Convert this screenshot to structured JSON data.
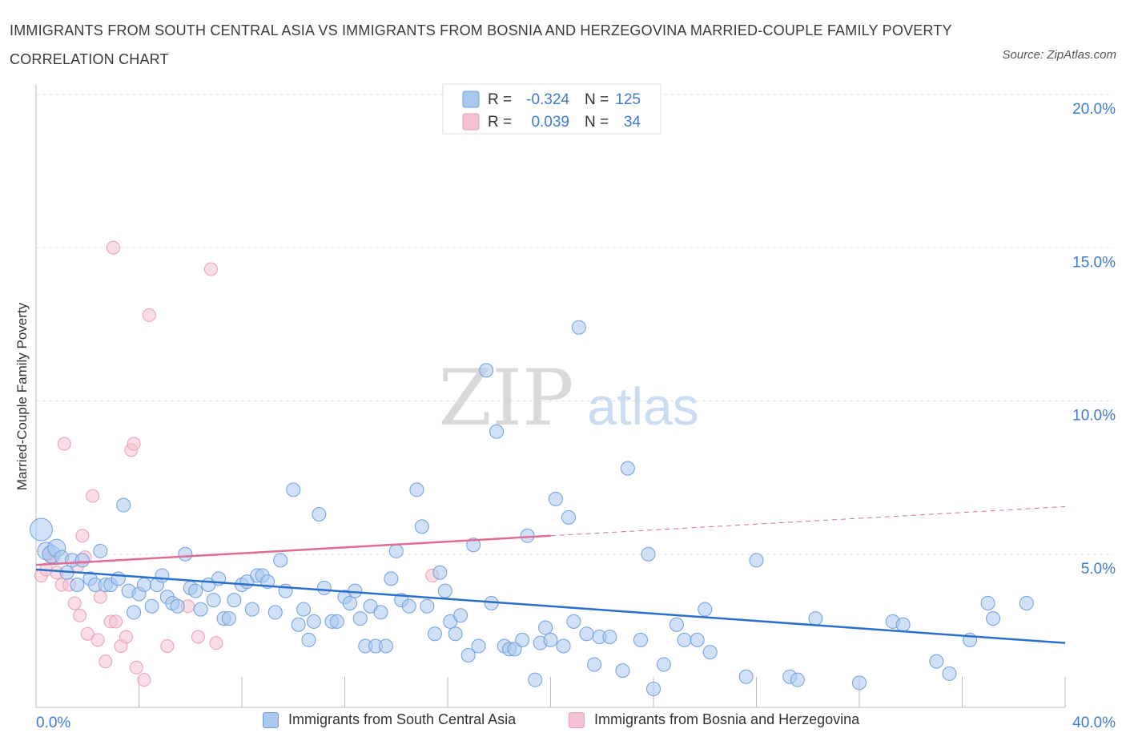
{
  "title": "IMMIGRANTS FROM SOUTH CENTRAL ASIA VS IMMIGRANTS FROM BOSNIA AND HERZEGOVINA MARRIED-COUPLE FAMILY POVERTY CORRELATION CHART",
  "source": "Source: ZipAtlas.com",
  "watermark": {
    "zip": "ZIP",
    "atlas": "atlas"
  },
  "colors": {
    "blue": "#a9c8f0",
    "blue_stroke": "#6fa0dc",
    "blue_line": "#2a6fcc",
    "pink": "#f6c1d0",
    "pink_stroke": "#e8a0b4",
    "pink_line": "#e06b95",
    "tick_text": "#3d7cd6"
  },
  "legend": {
    "rows": [
      {
        "r_label": "R =",
        "r_value": "-0.324",
        "n_label": "N =",
        "n_value": "125"
      },
      {
        "r_label": "R =",
        "r_value": "0.039",
        "n_label": "N =",
        "n_value": "34"
      }
    ]
  },
  "bottom_legend": [
    "Immigrants from South Central Asia",
    "Immigrants from Bosnia and Herzegovina"
  ],
  "chart_data": {
    "type": "scatter",
    "title": "IMMIGRANTS FROM SOUTH CENTRAL ASIA VS IMMIGRANTS FROM BOSNIA AND HERZEGOVINA MARRIED-COUPLE FAMILY POVERTY CORRELATION CHART",
    "xlabel": "",
    "ylabel": "Married-Couple Family Poverty",
    "xlim": [
      0,
      40
    ],
    "ylim": [
      0,
      20
    ],
    "x_tick_labels": [
      "0.0%",
      "40.0%"
    ],
    "y_tick_labels": [
      "5.0%",
      "10.0%",
      "15.0%",
      "20.0%"
    ],
    "y_ticks": [
      5,
      10,
      15,
      20
    ],
    "grid": true,
    "legend_position": "top-center",
    "series": [
      {
        "name": "Immigrants from South Central Asia",
        "r": -0.324,
        "n": 125,
        "trend": {
          "x0": 0,
          "y0": 4.5,
          "x1": 40,
          "y1": 2.1
        },
        "points": [
          [
            0.2,
            5.8
          ],
          [
            0.4,
            5.1
          ],
          [
            0.6,
            5.0
          ],
          [
            0.8,
            5.2
          ],
          [
            1.0,
            4.9
          ],
          [
            1.2,
            4.4
          ],
          [
            1.4,
            4.8
          ],
          [
            1.6,
            4.0
          ],
          [
            1.8,
            4.8
          ],
          [
            2.1,
            4.2
          ],
          [
            2.3,
            4.0
          ],
          [
            2.5,
            5.1
          ],
          [
            2.7,
            4.0
          ],
          [
            2.9,
            4.0
          ],
          [
            3.2,
            4.2
          ],
          [
            3.4,
            6.6
          ],
          [
            3.6,
            3.8
          ],
          [
            3.8,
            3.1
          ],
          [
            4.0,
            3.7
          ],
          [
            4.2,
            4.0
          ],
          [
            4.5,
            3.3
          ],
          [
            4.7,
            4.0
          ],
          [
            4.9,
            4.3
          ],
          [
            5.1,
            3.6
          ],
          [
            5.3,
            3.4
          ],
          [
            5.5,
            3.3
          ],
          [
            5.8,
            5.0
          ],
          [
            6.0,
            3.9
          ],
          [
            6.2,
            3.8
          ],
          [
            6.4,
            3.2
          ],
          [
            6.7,
            4.0
          ],
          [
            6.9,
            3.5
          ],
          [
            7.1,
            4.2
          ],
          [
            7.3,
            2.9
          ],
          [
            7.5,
            2.9
          ],
          [
            7.7,
            3.5
          ],
          [
            8.0,
            4.0
          ],
          [
            8.2,
            4.1
          ],
          [
            8.4,
            3.2
          ],
          [
            8.6,
            4.3
          ],
          [
            8.8,
            4.3
          ],
          [
            9.0,
            4.1
          ],
          [
            9.3,
            3.1
          ],
          [
            9.5,
            4.8
          ],
          [
            9.7,
            3.8
          ],
          [
            10.0,
            7.1
          ],
          [
            10.2,
            2.7
          ],
          [
            10.4,
            3.2
          ],
          [
            10.6,
            2.2
          ],
          [
            10.8,
            2.8
          ],
          [
            11.0,
            6.3
          ],
          [
            11.2,
            3.9
          ],
          [
            11.5,
            2.8
          ],
          [
            11.7,
            2.8
          ],
          [
            12.0,
            3.6
          ],
          [
            12.2,
            3.4
          ],
          [
            12.4,
            3.8
          ],
          [
            12.6,
            2.9
          ],
          [
            12.8,
            2.0
          ],
          [
            13.0,
            3.3
          ],
          [
            13.2,
            2.0
          ],
          [
            13.4,
            3.1
          ],
          [
            13.6,
            2.0
          ],
          [
            13.8,
            4.2
          ],
          [
            14.0,
            5.1
          ],
          [
            14.2,
            3.5
          ],
          [
            14.5,
            3.3
          ],
          [
            14.8,
            7.1
          ],
          [
            15.0,
            5.9
          ],
          [
            15.2,
            3.3
          ],
          [
            15.5,
            2.4
          ],
          [
            15.7,
            4.4
          ],
          [
            15.9,
            3.8
          ],
          [
            16.1,
            2.8
          ],
          [
            16.3,
            2.4
          ],
          [
            16.5,
            3.0
          ],
          [
            16.8,
            1.7
          ],
          [
            17.0,
            5.3
          ],
          [
            17.2,
            2.0
          ],
          [
            17.5,
            11.0
          ],
          [
            17.7,
            3.4
          ],
          [
            17.9,
            9.0
          ],
          [
            18.2,
            2.0
          ],
          [
            18.4,
            1.9
          ],
          [
            18.6,
            1.9
          ],
          [
            18.9,
            2.2
          ],
          [
            19.1,
            5.6
          ],
          [
            19.4,
            0.9
          ],
          [
            19.6,
            2.1
          ],
          [
            19.8,
            2.6
          ],
          [
            20.0,
            2.2
          ],
          [
            20.2,
            6.8
          ],
          [
            20.5,
            2.0
          ],
          [
            20.7,
            6.2
          ],
          [
            20.9,
            2.8
          ],
          [
            21.1,
            12.4
          ],
          [
            21.4,
            2.4
          ],
          [
            21.7,
            1.4
          ],
          [
            21.9,
            2.3
          ],
          [
            22.3,
            2.3
          ],
          [
            22.8,
            1.2
          ],
          [
            23.0,
            7.8
          ],
          [
            23.5,
            2.2
          ],
          [
            23.8,
            5.0
          ],
          [
            24.0,
            0.6
          ],
          [
            24.4,
            1.4
          ],
          [
            24.9,
            2.7
          ],
          [
            25.2,
            2.2
          ],
          [
            25.7,
            2.2
          ],
          [
            26.0,
            3.2
          ],
          [
            26.2,
            1.8
          ],
          [
            27.6,
            1.0
          ],
          [
            28.0,
            4.8
          ],
          [
            29.3,
            1.0
          ],
          [
            29.6,
            0.9
          ],
          [
            30.3,
            2.9
          ],
          [
            32.0,
            0.8
          ],
          [
            33.3,
            2.8
          ],
          [
            33.7,
            2.7
          ],
          [
            35.0,
            1.5
          ],
          [
            35.5,
            1.1
          ],
          [
            36.3,
            2.2
          ],
          [
            37.0,
            3.4
          ],
          [
            37.2,
            2.9
          ],
          [
            38.5,
            3.4
          ]
        ]
      },
      {
        "name": "Immigrants from Bosnia and Herzegovina",
        "r": 0.039,
        "n": 34,
        "trend": {
          "x0": 0,
          "y0": 4.65,
          "x1": 20,
          "y1": 5.6,
          "dash_x1": 40,
          "dash_y1": 6.55
        },
        "points": [
          [
            0.2,
            4.3
          ],
          [
            0.4,
            4.5
          ],
          [
            0.6,
            4.9
          ],
          [
            0.8,
            4.4
          ],
          [
            1.0,
            4.0
          ],
          [
            1.1,
            8.6
          ],
          [
            1.3,
            4.0
          ],
          [
            1.5,
            3.4
          ],
          [
            1.7,
            3.0
          ],
          [
            1.8,
            5.6
          ],
          [
            1.9,
            4.9
          ],
          [
            2.0,
            2.4
          ],
          [
            2.2,
            6.9
          ],
          [
            2.4,
            2.2
          ],
          [
            2.5,
            3.6
          ],
          [
            2.7,
            1.5
          ],
          [
            2.9,
            2.8
          ],
          [
            3.0,
            15.0
          ],
          [
            3.1,
            2.8
          ],
          [
            3.3,
            2.0
          ],
          [
            3.5,
            2.3
          ],
          [
            3.7,
            8.4
          ],
          [
            3.8,
            8.6
          ],
          [
            3.9,
            1.3
          ],
          [
            4.2,
            0.9
          ],
          [
            4.4,
            12.8
          ],
          [
            5.1,
            2.0
          ],
          [
            5.9,
            3.3
          ],
          [
            6.3,
            2.3
          ],
          [
            6.8,
            14.3
          ],
          [
            7.0,
            2.1
          ],
          [
            15.4,
            4.3
          ],
          [
            0.5,
            5.0
          ],
          [
            1.6,
            4.6
          ]
        ]
      }
    ]
  }
}
